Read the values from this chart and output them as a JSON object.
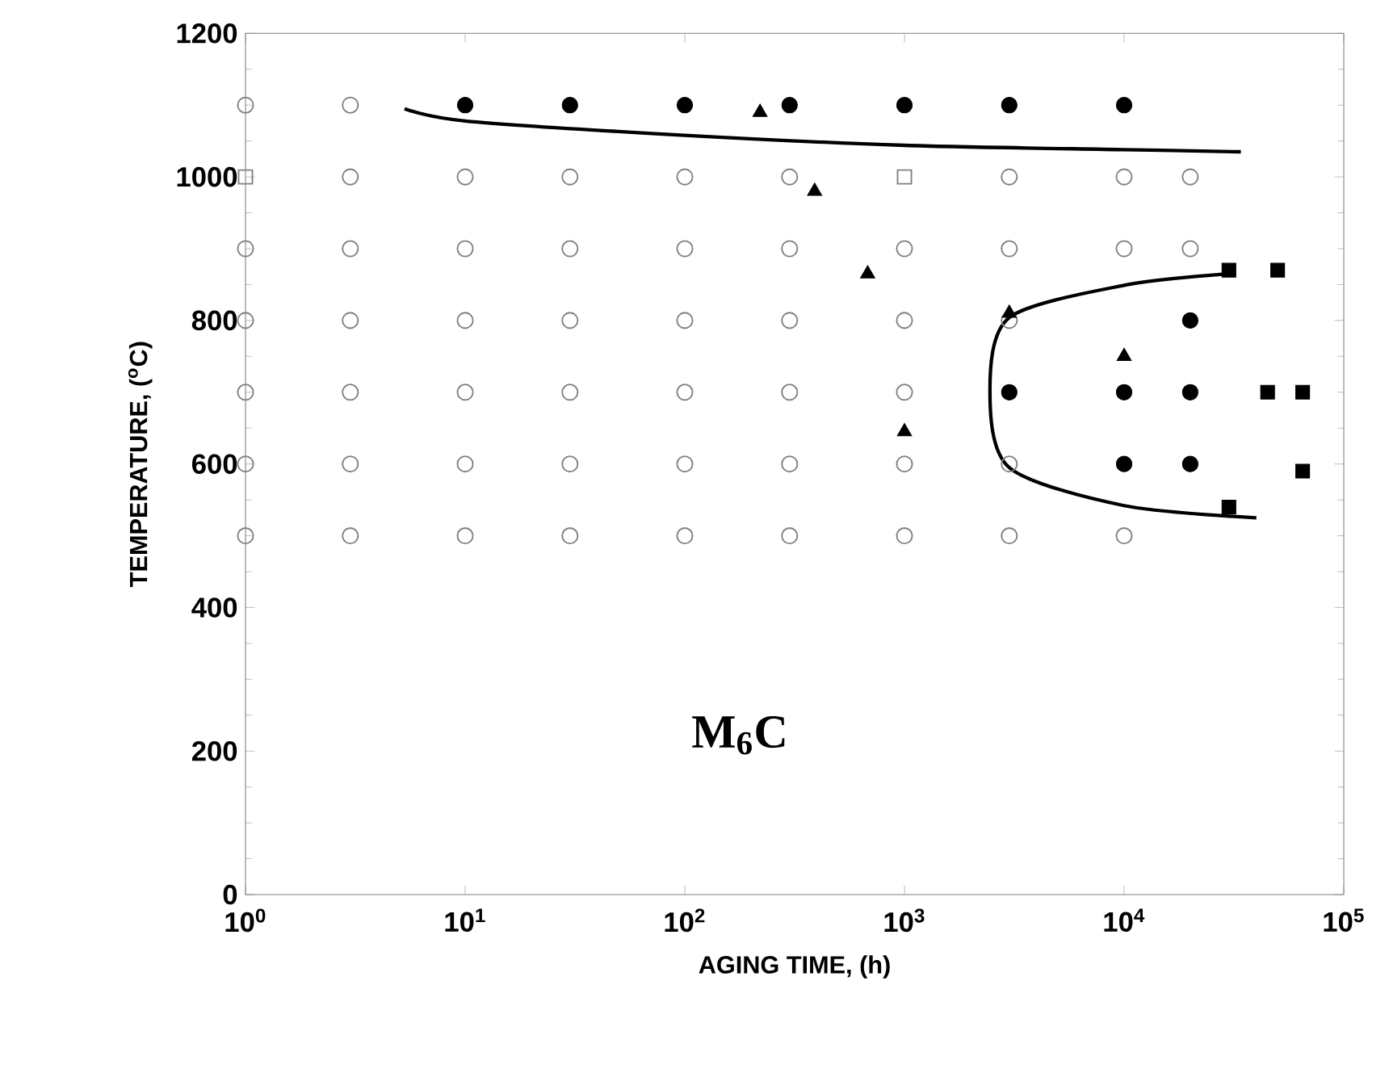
{
  "chart_data": {
    "type": "scatter",
    "xlabel": "AGING TIME, (h)",
    "ylabel": "TEMPERATURE, ($^{o}$C)",
    "log": "x",
    "grid": false,
    "xlim": [
      1,
      100000
    ],
    "ylim": [
      0,
      1200
    ],
    "xticks": [
      {
        "value": 1,
        "label": "10$^{0}$"
      },
      {
        "value": 10,
        "label": "10$^{1}$"
      },
      {
        "value": 100,
        "label": "10$^{2}$"
      },
      {
        "value": 1000,
        "label": "10$^{3}$"
      },
      {
        "value": 10000,
        "label": "10$^{4}$"
      },
      {
        "value": 100000,
        "label": "10$^{5}$"
      }
    ],
    "yticks": [
      0,
      200,
      400,
      600,
      800,
      1000,
      1200
    ],
    "annotations": [
      "M$_{6}$C"
    ],
    "series": [
      {
        "marker": "circle",
        "color": "#808080",
        "x": [
          1,
          3,
          3,
          10,
          30,
          100,
          300,
          3000,
          10000,
          20000,
          1,
          3,
          10,
          30,
          100,
          300,
          1000,
          3000,
          10000,
          20000,
          1,
          3,
          10,
          30,
          100,
          300,
          1000,
          3000,
          1,
          3,
          10,
          30,
          100,
          300,
          1000,
          1,
          3,
          10,
          30,
          100,
          300,
          1000,
          3000,
          1,
          3,
          10,
          30,
          100,
          300,
          1000,
          3000,
          10000
        ],
        "values": [
          1100,
          1100,
          1000,
          1000,
          1000,
          1000,
          1000,
          1000,
          1000,
          1000,
          900,
          900,
          900,
          900,
          900,
          900,
          900,
          900,
          900,
          900,
          800,
          800,
          800,
          800,
          800,
          800,
          800,
          800,
          700,
          700,
          700,
          700,
          700,
          700,
          700,
          600,
          600,
          600,
          600,
          600,
          600,
          600,
          600,
          500,
          500,
          500,
          500,
          500,
          500,
          500,
          500,
          500
        ]
      },
      {
        "marker": "square",
        "color": "#808080",
        "x": [
          1,
          1000
        ],
        "values": [
          1000,
          1000
        ]
      },
      {
        "marker": "circle",
        "color": "#000000",
        "x": [
          10,
          30,
          100,
          300,
          1000,
          3000,
          10000,
          20000,
          3000,
          10000,
          20000,
          10000,
          20000
        ],
        "values": [
          1100,
          1100,
          1100,
          1100,
          1100,
          1100,
          1100,
          800,
          700,
          700,
          700,
          600,
          600
        ]
      },
      {
        "marker": "triangle",
        "color": "#000000",
        "x": [
          220,
          390,
          680,
          3000,
          10000,
          1000
        ],
        "values": [
          1090,
          980,
          865,
          810,
          750,
          645
        ]
      },
      {
        "marker": "square",
        "color": "#000000",
        "x": [
          30000,
          50000,
          45000,
          65000,
          65000,
          30000
        ],
        "values": [
          870,
          870,
          700,
          700,
          590,
          540
        ]
      },
      {
        "type": "line",
        "marker": "none",
        "line_style": "solid",
        "color": "#000000",
        "x": [
          5.3,
          10,
          100,
          1000,
          10000,
          34000
        ],
        "values": [
          1095,
          1078,
          1058,
          1044,
          1038,
          1035
        ]
      },
      {
        "type": "line",
        "marker": "none",
        "line_style": "solid",
        "color": "#000000",
        "x": [
          29500,
          10000,
          3000,
          2450,
          3000,
          10000,
          40000
        ],
        "values": [
          865,
          849,
          804,
          702,
          595,
          542,
          525
        ]
      }
    ]
  }
}
